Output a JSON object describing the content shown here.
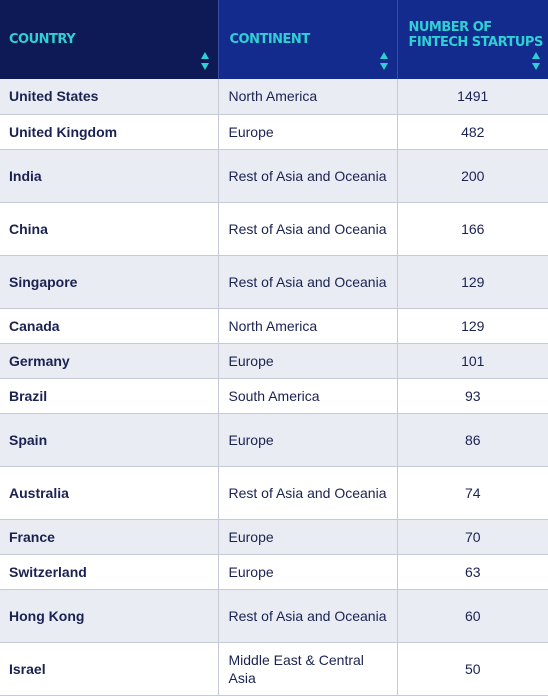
{
  "colors": {
    "header_country_bg": "#0d1a55",
    "header_bg": "#142b8e",
    "header_text": "#2fd0d3",
    "row_alt_bg": "#eaecf4",
    "row_bg": "#ffffff",
    "body_text": "#1a2251"
  },
  "header": {
    "country": "COUNTRY",
    "continent": "CONTINENT",
    "count": "NUMBER OF FINTECH STARTUPS"
  },
  "rows": [
    {
      "country": "United States",
      "continent": "North America",
      "count": "1491"
    },
    {
      "country": "United Kingdom",
      "continent": "Europe",
      "count": "482"
    },
    {
      "country": "India",
      "continent": "Rest of Asia and Oceania",
      "count": "200"
    },
    {
      "country": "China",
      "continent": "Rest of Asia and Oceania",
      "count": "166"
    },
    {
      "country": "Singapore",
      "continent": "Rest of Asia and Oceania",
      "count": "129"
    },
    {
      "country": "Canada",
      "continent": "North America",
      "count": "129"
    },
    {
      "country": "Germany",
      "continent": "Europe",
      "count": "101"
    },
    {
      "country": "Brazil",
      "continent": "South America",
      "count": "93"
    },
    {
      "country": "Spain",
      "continent": "Europe",
      "count": "86"
    },
    {
      "country": "Australia",
      "continent": "Rest of Asia and Oceania",
      "count": "74"
    },
    {
      "country": "France",
      "continent": "Europe",
      "count": "70"
    },
    {
      "country": "Switzerland",
      "continent": "Europe",
      "count": "63"
    },
    {
      "country": "Hong Kong",
      "continent": "Rest of Asia and Oceania",
      "count": "60"
    },
    {
      "country": "Israel",
      "continent": "Middle East & Central Asia",
      "count": "50"
    }
  ]
}
